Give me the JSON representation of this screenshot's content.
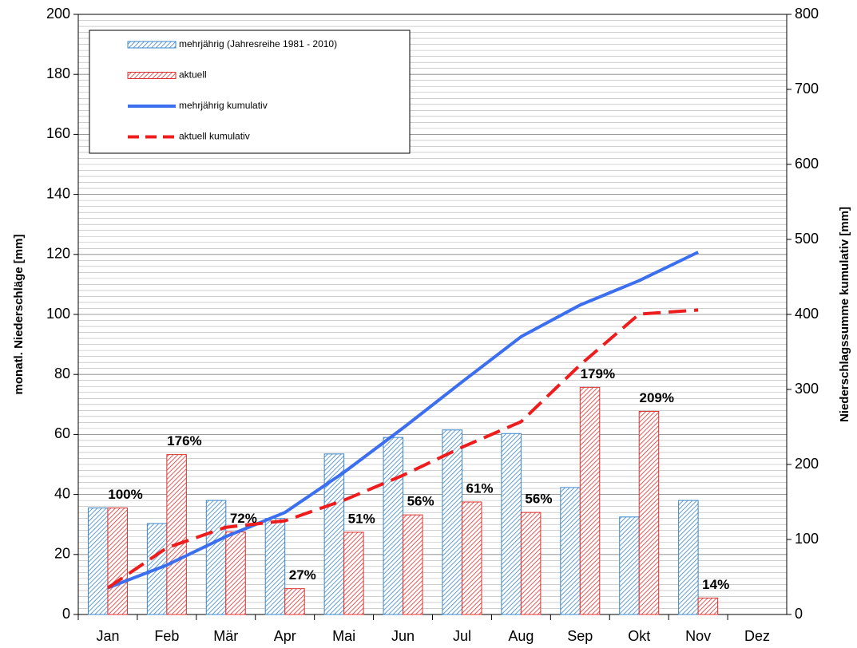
{
  "chart_data": {
    "type": "bar",
    "ylabel": "monatl. Niederschläge [mm]",
    "y2label": "Niederschlagssumme kumulativ [mm]",
    "categories": [
      "Jan",
      "Feb",
      "Mär",
      "Apr",
      "Mai",
      "Jun",
      "Jul",
      "Aug",
      "Sep",
      "Okt",
      "Nov",
      "Dez"
    ],
    "series": [
      {
        "name": "mehrjährig (Jahresreihe 1981 - 2010)",
        "type": "bar",
        "color": "#3a86c8",
        "values": [
          35.5,
          30.3,
          38,
          32,
          53.5,
          59,
          61.5,
          60.3,
          42.3,
          32.5,
          38,
          null
        ]
      },
      {
        "name": "aktuell",
        "type": "bar",
        "color": "#e0302e",
        "values": [
          35.5,
          53.3,
          27.5,
          8.6,
          27.4,
          33.2,
          37.5,
          34,
          75.7,
          67.7,
          5.5,
          null
        ]
      },
      {
        "name": "mehrjährig kumulativ",
        "type": "line",
        "axis": "y2",
        "color": "#3b6ff0",
        "dashed": false,
        "values": [
          35.5,
          65.8,
          103.8,
          136,
          189.5,
          248.5,
          310,
          370.3,
          412.6,
          445,
          483,
          null
        ]
      },
      {
        "name": "aktuell kumulativ",
        "type": "line",
        "axis": "y2",
        "color": "#ee1c1c",
        "dashed": true,
        "values": [
          35.5,
          88.8,
          116.3,
          124.9,
          152.3,
          185.5,
          223,
          257,
          332.7,
          400.4,
          405.9,
          null
        ]
      }
    ],
    "percent_labels": [
      "100%",
      "176%",
      "72%",
      "27%",
      "51%",
      "56%",
      "61%",
      "56%",
      "179%",
      "209%",
      "14%",
      null
    ],
    "ylim": [
      0,
      200
    ],
    "yticks": [
      0,
      20,
      40,
      60,
      80,
      100,
      120,
      140,
      160,
      180,
      200
    ],
    "y2lim": [
      0,
      800
    ],
    "y2ticks": [
      0,
      100,
      200,
      300,
      400,
      500,
      600,
      700,
      800
    ],
    "grid": true
  }
}
